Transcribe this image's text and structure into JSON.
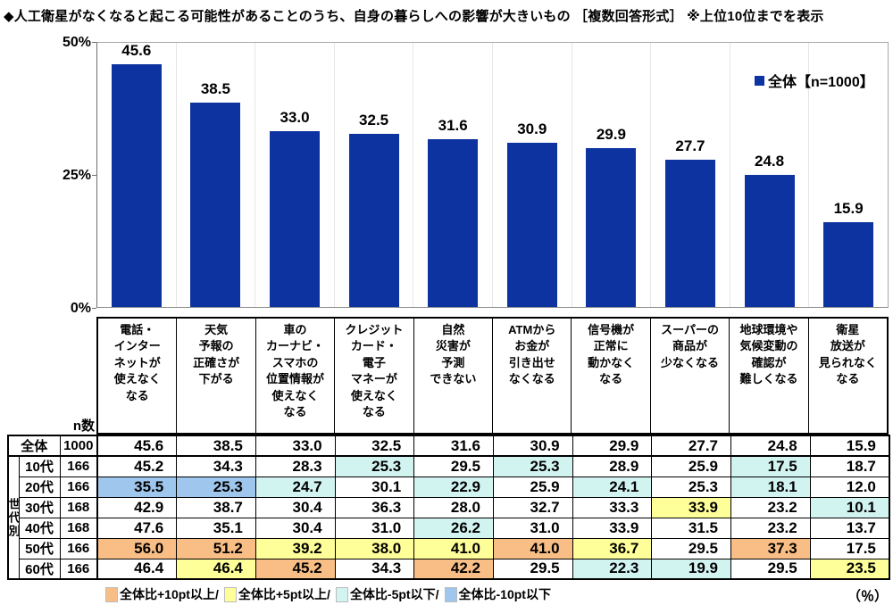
{
  "title": "◆人工衛星がなくなると起こる可能性があることのうち、自身の暮らしへの影響が大きいもの ［複数回答形式］ ※上位10位までを表示",
  "colors": {
    "bar": "#0d33a1",
    "o": "#f9be85",
    "y": "#ffff99",
    "c": "#d2f4f1",
    "b": "#9fc6ec"
  },
  "chart_data": {
    "type": "bar",
    "title": "人工衛星がなくなると起こる可能性があることのうち、自身の暮らしへの影響が大きいもの",
    "legend_label": "全体【n=1000】",
    "legend_position": "top-right",
    "ylim": [
      0,
      50
    ],
    "yticks": [
      "50%",
      "25%",
      "0%"
    ],
    "grid": "column-dividers-only",
    "categories": [
      "電話・\nインター\nネットが\n使えなく\nなる",
      "天気\n予報の\n正確さが\n下がる",
      "車の\nカーナビ・\nスマホの\n位置情報が\n使えなく\nなる",
      "クレジット\nカード・\n電子\nマネーが\n使えなく\nなる",
      "自然\n災害が\n予測\nできない",
      "ATMから\nお金が\n引き出せ\nなくなる",
      "信号機が\n正常に\n動かなく\nなる",
      "スーパーの\n商品が\n少なくなる",
      "地球環境や\n気候変動の\n確認が\n難しくなる",
      "衛星\n放送が\n見られなく\nなる"
    ],
    "values": [
      "45.6",
      "38.5",
      "33.0",
      "32.5",
      "31.6",
      "30.9",
      "29.9",
      "27.7",
      "24.8",
      "15.9"
    ]
  },
  "table": {
    "n_header": "n数",
    "group_label": "世代別",
    "rows": [
      {
        "label": "全体",
        "n": "1000",
        "total": true,
        "values": [
          "45.6",
          "38.5",
          "33.0",
          "32.5",
          "31.6",
          "30.9",
          "29.9",
          "27.7",
          "24.8",
          "15.9"
        ],
        "flags": [
          "",
          "",
          "",
          "",
          "",
          "",
          "",
          "",
          "",
          ""
        ]
      },
      {
        "label": "10代",
        "n": "166",
        "total": false,
        "values": [
          "45.2",
          "34.3",
          "28.3",
          "25.3",
          "29.5",
          "25.3",
          "28.9",
          "25.9",
          "17.5",
          "18.7"
        ],
        "flags": [
          "",
          "",
          "",
          "c",
          "",
          "c",
          "",
          "",
          "c",
          ""
        ]
      },
      {
        "label": "20代",
        "n": "166",
        "total": false,
        "values": [
          "35.5",
          "25.3",
          "24.7",
          "30.1",
          "22.9",
          "25.9",
          "24.1",
          "25.3",
          "18.1",
          "12.0"
        ],
        "flags": [
          "b",
          "b",
          "c",
          "",
          "c",
          "",
          "c",
          "",
          "c",
          ""
        ]
      },
      {
        "label": "30代",
        "n": "168",
        "total": false,
        "values": [
          "42.9",
          "38.7",
          "30.4",
          "36.3",
          "28.0",
          "32.7",
          "33.3",
          "33.9",
          "23.2",
          "10.1"
        ],
        "flags": [
          "",
          "",
          "",
          "",
          "",
          "",
          "",
          "y",
          "",
          "c"
        ]
      },
      {
        "label": "40代",
        "n": "168",
        "total": false,
        "values": [
          "47.6",
          "35.1",
          "30.4",
          "31.0",
          "26.2",
          "31.0",
          "33.9",
          "31.5",
          "23.2",
          "13.7"
        ],
        "flags": [
          "",
          "",
          "",
          "",
          "c",
          "",
          "",
          "",
          "",
          ""
        ]
      },
      {
        "label": "50代",
        "n": "166",
        "total": false,
        "values": [
          "56.0",
          "51.2",
          "39.2",
          "38.0",
          "41.0",
          "41.0",
          "36.7",
          "29.5",
          "37.3",
          "17.5"
        ],
        "flags": [
          "o",
          "o",
          "y",
          "y",
          "y",
          "o",
          "y",
          "",
          "o",
          ""
        ]
      },
      {
        "label": "60代",
        "n": "166",
        "total": false,
        "values": [
          "46.4",
          "46.4",
          "45.2",
          "34.3",
          "42.2",
          "29.5",
          "22.3",
          "19.9",
          "29.5",
          "23.5"
        ],
        "flags": [
          "",
          "y",
          "o",
          "",
          "o",
          "",
          "c",
          "c",
          "",
          "y"
        ]
      }
    ]
  },
  "legend_bottom": {
    "items": [
      {
        "key": "o",
        "label": "全体比+10pt以上/"
      },
      {
        "key": "y",
        "label": "全体比+5pt以上/"
      },
      {
        "key": "c",
        "label": "全体比-5pt以下/"
      },
      {
        "key": "b",
        "label": "全体比-10pt以下"
      }
    ],
    "unit": "（％）"
  }
}
